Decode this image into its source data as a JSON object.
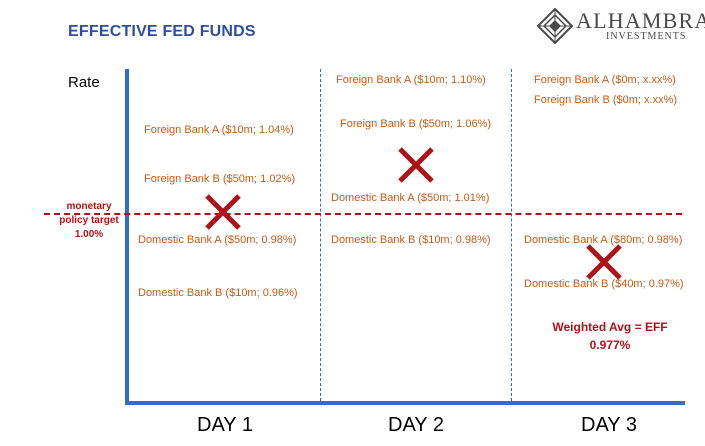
{
  "title": "EFFECTIVE FED FUNDS",
  "logo": {
    "name": "ALHAMBRA",
    "sub": "INVESTMENTS",
    "mark_color": "#4a4a4a"
  },
  "y_axis_label": "Rate",
  "policy_target": {
    "line1": "monetary",
    "line2": "policy target",
    "line3": "1.00%",
    "color": "#b01217"
  },
  "days": [
    {
      "label": "DAY 1",
      "banks": [
        "Foreign Bank A ($10m; 1.04%)",
        "Foreign Bank B ($50m; 1.02%)",
        "Domestic Bank A ($50m; 0.98%)",
        "Domestic Bank B ($10m; 0.96%)"
      ]
    },
    {
      "label": "DAY 2",
      "banks": [
        "Foreign Bank A ($10m; 1.10%)",
        "Foreign Bank B ($50m; 1.06%)",
        "Domestic Bank A ($50m; 1.01%)",
        "Domestic Bank B ($10m; 0.98%)"
      ]
    },
    {
      "label": "DAY 3",
      "banks": [
        "Foreign Bank A ($0m; x.xx%)",
        "Foreign Bank B ($0m; x.xx%)",
        "Domestic Bank A ($80m; 0.98%)",
        "Domestic Bank B ($40m; 0.97%)"
      ]
    }
  ],
  "weighted_avg": {
    "line1": "Weighted Avg = EFF",
    "line2": "0.977%"
  },
  "colors": {
    "title": "#2e4f9f",
    "axis": "#2f6fc6",
    "bank_text": "#c65b16",
    "marker": "#b01217"
  }
}
